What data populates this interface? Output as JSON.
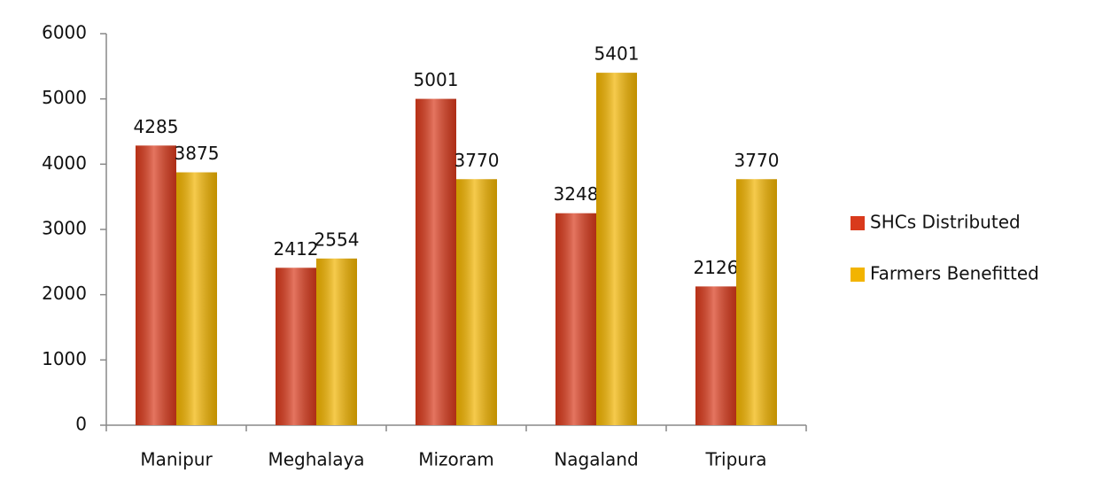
{
  "chart_data": {
    "type": "bar",
    "categories": [
      "Manipur",
      "Meghalaya",
      "Mizoram",
      "Nagaland",
      "Tripura"
    ],
    "series": [
      {
        "name": "SHCs Distributed",
        "color": "#d93a1c",
        "values": [
          4285,
          2412,
          5001,
          3248,
          2126
        ]
      },
      {
        "name": "Farmers Benefitted",
        "color": "#f2b400",
        "values": [
          3875,
          2554,
          3770,
          5401,
          3770
        ]
      }
    ],
    "ylim": [
      0,
      6000
    ],
    "yticks": [
      0,
      1000,
      2000,
      3000,
      4000,
      5000,
      6000
    ],
    "grid": false,
    "legend": "right"
  }
}
